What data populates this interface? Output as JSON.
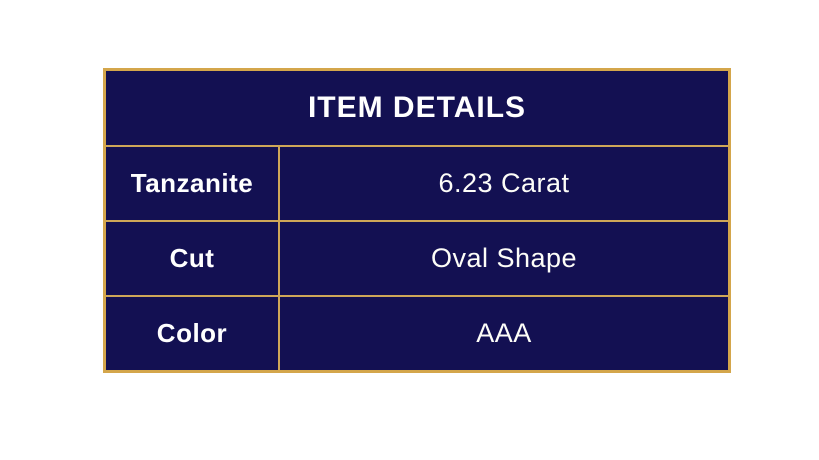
{
  "canvas": {
    "background_color": "#ffffff"
  },
  "table": {
    "title": "ITEM DETAILS",
    "colors": {
      "cell_background": "#131052",
      "outer_border_gold": "#d4a64b",
      "separator_gold": "#cfa758",
      "header_text": "#ffffff",
      "body_text": "#fdfdf8"
    },
    "rows": [
      {
        "label": "Tanzanite",
        "value": "6.23 Carat"
      },
      {
        "label": "Cut",
        "value": "Oval Shape"
      },
      {
        "label": "Color",
        "value": "AAA"
      }
    ]
  }
}
